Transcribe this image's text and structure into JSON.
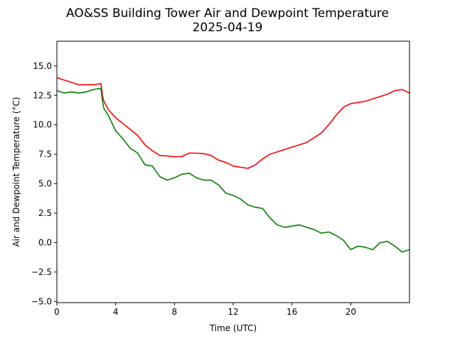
{
  "chart_data": {
    "type": "line",
    "title": "AO&SS Building Tower Air and Dewpoint Temperature",
    "subtitle": "2025-04-19",
    "xlabel": "Time (UTC)",
    "ylabel": "Air and Dewpoint Temperature (°C)",
    "xlim": [
      0,
      24
    ],
    "ylim": [
      -5.1,
      17.1
    ],
    "x_ticks": [
      0,
      4,
      8,
      12,
      16,
      20
    ],
    "x_tick_labels": [
      "0",
      "4",
      "8",
      "12",
      "16",
      "20"
    ],
    "y_ticks": [
      -5.0,
      -2.5,
      0.0,
      2.5,
      5.0,
      7.5,
      10.0,
      12.5,
      15.0
    ],
    "y_tick_labels": [
      "−5.0",
      "−2.5",
      "0.0",
      "2.5",
      "5.0",
      "7.5",
      "10.0",
      "12.5",
      "15.0"
    ],
    "grid": false,
    "series": [
      {
        "color": "#ff0000",
        "x": [
          0,
          0.5,
          1,
          1.5,
          2,
          2.5,
          3.0,
          3.1,
          3.2,
          3.5,
          4,
          4.5,
          5,
          5.5,
          6,
          6.5,
          7,
          7.5,
          8,
          8.5,
          9,
          9.5,
          10,
          10.5,
          11,
          11.5,
          12,
          12.5,
          13,
          13.5,
          14,
          14.5,
          15,
          15.5,
          16,
          16.5,
          17,
          17.5,
          18,
          18.5,
          19,
          19.5,
          20,
          20.5,
          21,
          21.5,
          22,
          22.5,
          23,
          23.5,
          24
        ],
        "y": [
          14.0,
          13.8,
          13.6,
          13.4,
          13.4,
          13.4,
          13.5,
          12.5,
          12.0,
          11.3,
          10.6,
          10.1,
          9.6,
          9.1,
          8.3,
          7.8,
          7.4,
          7.35,
          7.3,
          7.3,
          7.6,
          7.6,
          7.55,
          7.4,
          7.0,
          6.8,
          6.5,
          6.4,
          6.3,
          6.6,
          7.1,
          7.5,
          7.7,
          7.9,
          8.1,
          8.3,
          8.5,
          8.9,
          9.3,
          10.0,
          10.8,
          11.5,
          11.8,
          11.9,
          12.0,
          12.2,
          12.4,
          12.6,
          12.9,
          13.0,
          12.7
        ]
      },
      {
        "color": "#008000",
        "x": [
          0,
          0.5,
          1,
          1.5,
          2,
          2.5,
          3.0,
          3.1,
          3.2,
          3.5,
          4,
          4.5,
          5,
          5.5,
          6,
          6.5,
          7,
          7.5,
          8,
          8.5,
          9,
          9.5,
          10,
          10.5,
          11,
          11.5,
          12,
          12.5,
          13,
          13.5,
          14,
          14.5,
          15,
          15.5,
          16,
          16.5,
          17,
          17.5,
          18,
          18.5,
          19,
          19.5,
          20,
          20.5,
          21,
          21.5,
          22,
          22.5,
          23,
          23.5,
          24
        ],
        "y": [
          12.9,
          12.7,
          12.8,
          12.7,
          12.8,
          13.0,
          13.1,
          12.0,
          11.4,
          10.8,
          9.5,
          8.8,
          8.0,
          7.6,
          6.6,
          6.5,
          5.6,
          5.3,
          5.5,
          5.8,
          5.9,
          5.5,
          5.3,
          5.3,
          4.9,
          4.2,
          4.0,
          3.7,
          3.2,
          3.0,
          2.9,
          2.1,
          1.5,
          1.3,
          1.4,
          1.5,
          1.3,
          1.1,
          0.8,
          0.9,
          0.6,
          0.2,
          -0.6,
          -0.3,
          -0.4,
          -0.6,
          0.0,
          0.1,
          -0.3,
          -0.8,
          -0.6
        ]
      }
    ]
  }
}
